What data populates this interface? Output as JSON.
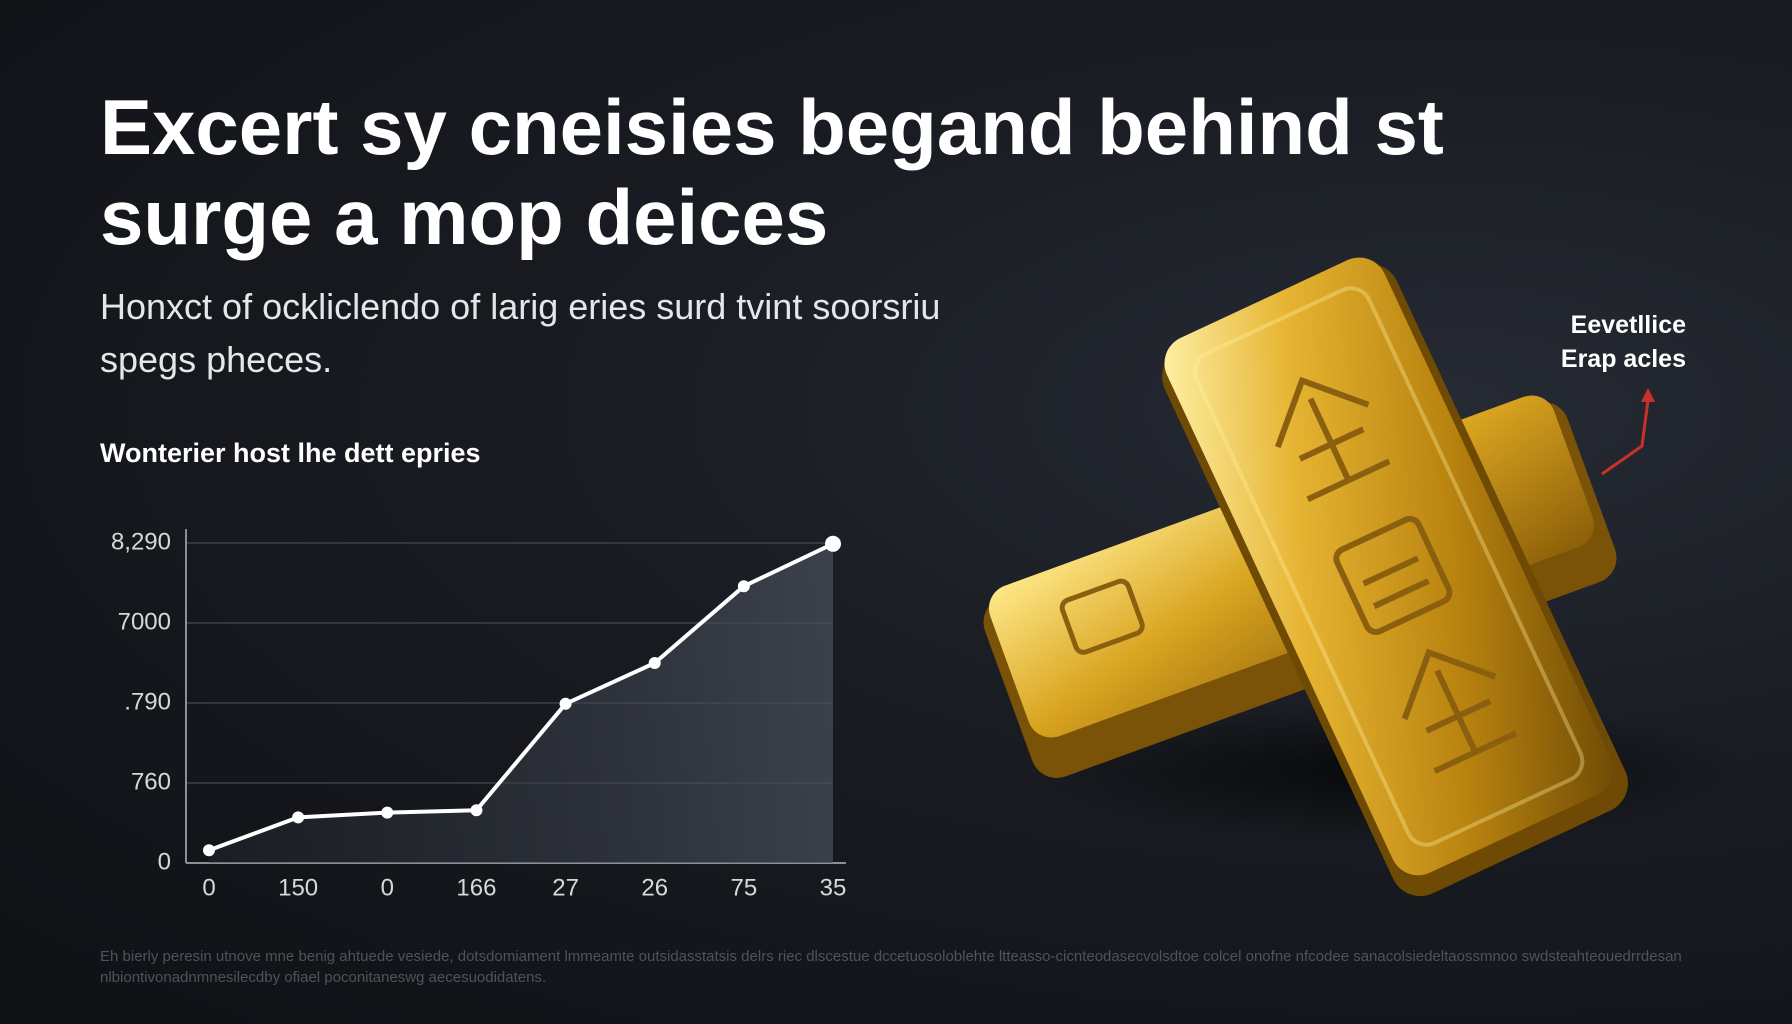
{
  "header": {
    "title": "Excert sy cneisies begand behind st surge a mop deices",
    "subtitle": "Honxct of ockliclendo of larig eries surd tvint soorsriu spegs pheces."
  },
  "annotation": [
    "Eevetllice",
    "Erap acles"
  ],
  "footer": "Eh bierly peresin utnove mne benig ahtuede vesiede, dotsdomiament lmmeamte outsidasstatsis delrs riec dlscestue dccetuosoloblehte ltteasso-cicnteodasecvolsdtoe colcel onofne nfcodee sanacolsiedeltaossmnoo swdsteahteouedrrdesan nlbiontivonadnmnesilecdby ofiael poconitaneswg aecesuodidatens.",
  "chart_data": {
    "type": "line",
    "title": "Wonterier host lhe dett epries",
    "categories": [
      "0",
      "150",
      "0",
      "166",
      "27",
      "26",
      "75",
      "35"
    ],
    "values": [
      0.16,
      0.57,
      0.63,
      0.66,
      1.99,
      2.5,
      3.46,
      3.99
    ],
    "color": "#ffffff",
    "ylim": [
      0,
      4.15
    ],
    "yticks": [
      0,
      {
        "value": 1,
        "label": "760"
      },
      {
        "value": 2,
        "label": ".790"
      },
      {
        "value": 3,
        "label": "7000"
      },
      {
        "value": 4,
        "label": "8,290"
      }
    ],
    "grid": true
  }
}
